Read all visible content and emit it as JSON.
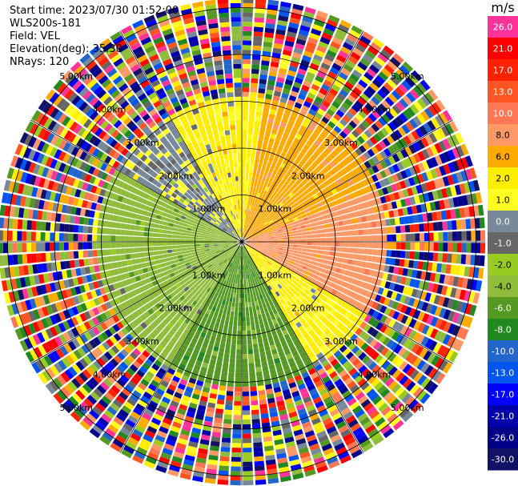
{
  "header": {
    "start_time": "Start time: 2023/07/30 01:52:00",
    "instrument": "WLS200s-181",
    "field": "Field: VEL",
    "elevation": "Elevation(deg): 35.30",
    "nrays": "NRays: 120"
  },
  "colorbar": {
    "unit": "m/s",
    "ticks": [
      "26.0",
      "21.0",
      "17.0",
      "13.0",
      "10.0",
      "8.0",
      "6.0",
      "2.0",
      "1.0",
      "0.0",
      "-1.0",
      "-2.0",
      "-4.0",
      "-6.0",
      "-8.0",
      "-10.0",
      "-13.0",
      "-17.0",
      "-21.0",
      "-26.0",
      "-30.0"
    ],
    "colors": [
      "#ff3399",
      "#ff0000",
      "#ff2200",
      "#ff5522",
      "#ff7755",
      "#ff9966",
      "#ffaa00",
      "#ffee00",
      "#ffff22",
      "#778899",
      "#666666",
      "#99cc22",
      "#8fbc3a",
      "#559922",
      "#228822",
      "#2266cc",
      "#0055ee",
      "#0000ff",
      "#0000aa",
      "#000088",
      "#111166"
    ]
  },
  "chart_data": {
    "type": "ppi-polar",
    "field": "VEL",
    "units": "m/s",
    "nrays": 120,
    "range_rings_km": [
      1.0,
      2.0,
      3.0,
      4.0,
      5.0
    ],
    "ring_labels": [
      "1.00km",
      "2.00km",
      "3.00km",
      "4.00km",
      "5.00km"
    ],
    "spokes_deg": [
      0,
      30,
      60,
      90,
      120,
      150,
      180,
      210,
      240,
      270,
      300,
      330
    ],
    "valid_range_km": 3.0,
    "max_range_km": 5.2,
    "velocity_regions": [
      {
        "az_from": 10,
        "az_to": 70,
        "velocity_ms": 6.0
      },
      {
        "az_from": 70,
        "az_to": 120,
        "velocity_ms": 8.0
      },
      {
        "az_from": 120,
        "az_to": 150,
        "velocity_ms": 2.0
      },
      {
        "az_from": 150,
        "az_to": 210,
        "velocity_ms": -6.0
      },
      {
        "az_from": 210,
        "az_to": 300,
        "velocity_ms": -4.0
      },
      {
        "az_from": 300,
        "az_to": 330,
        "velocity_ms": 0.0
      },
      {
        "az_from": 330,
        "az_to": 370,
        "velocity_ms": 2.0
      }
    ]
  }
}
